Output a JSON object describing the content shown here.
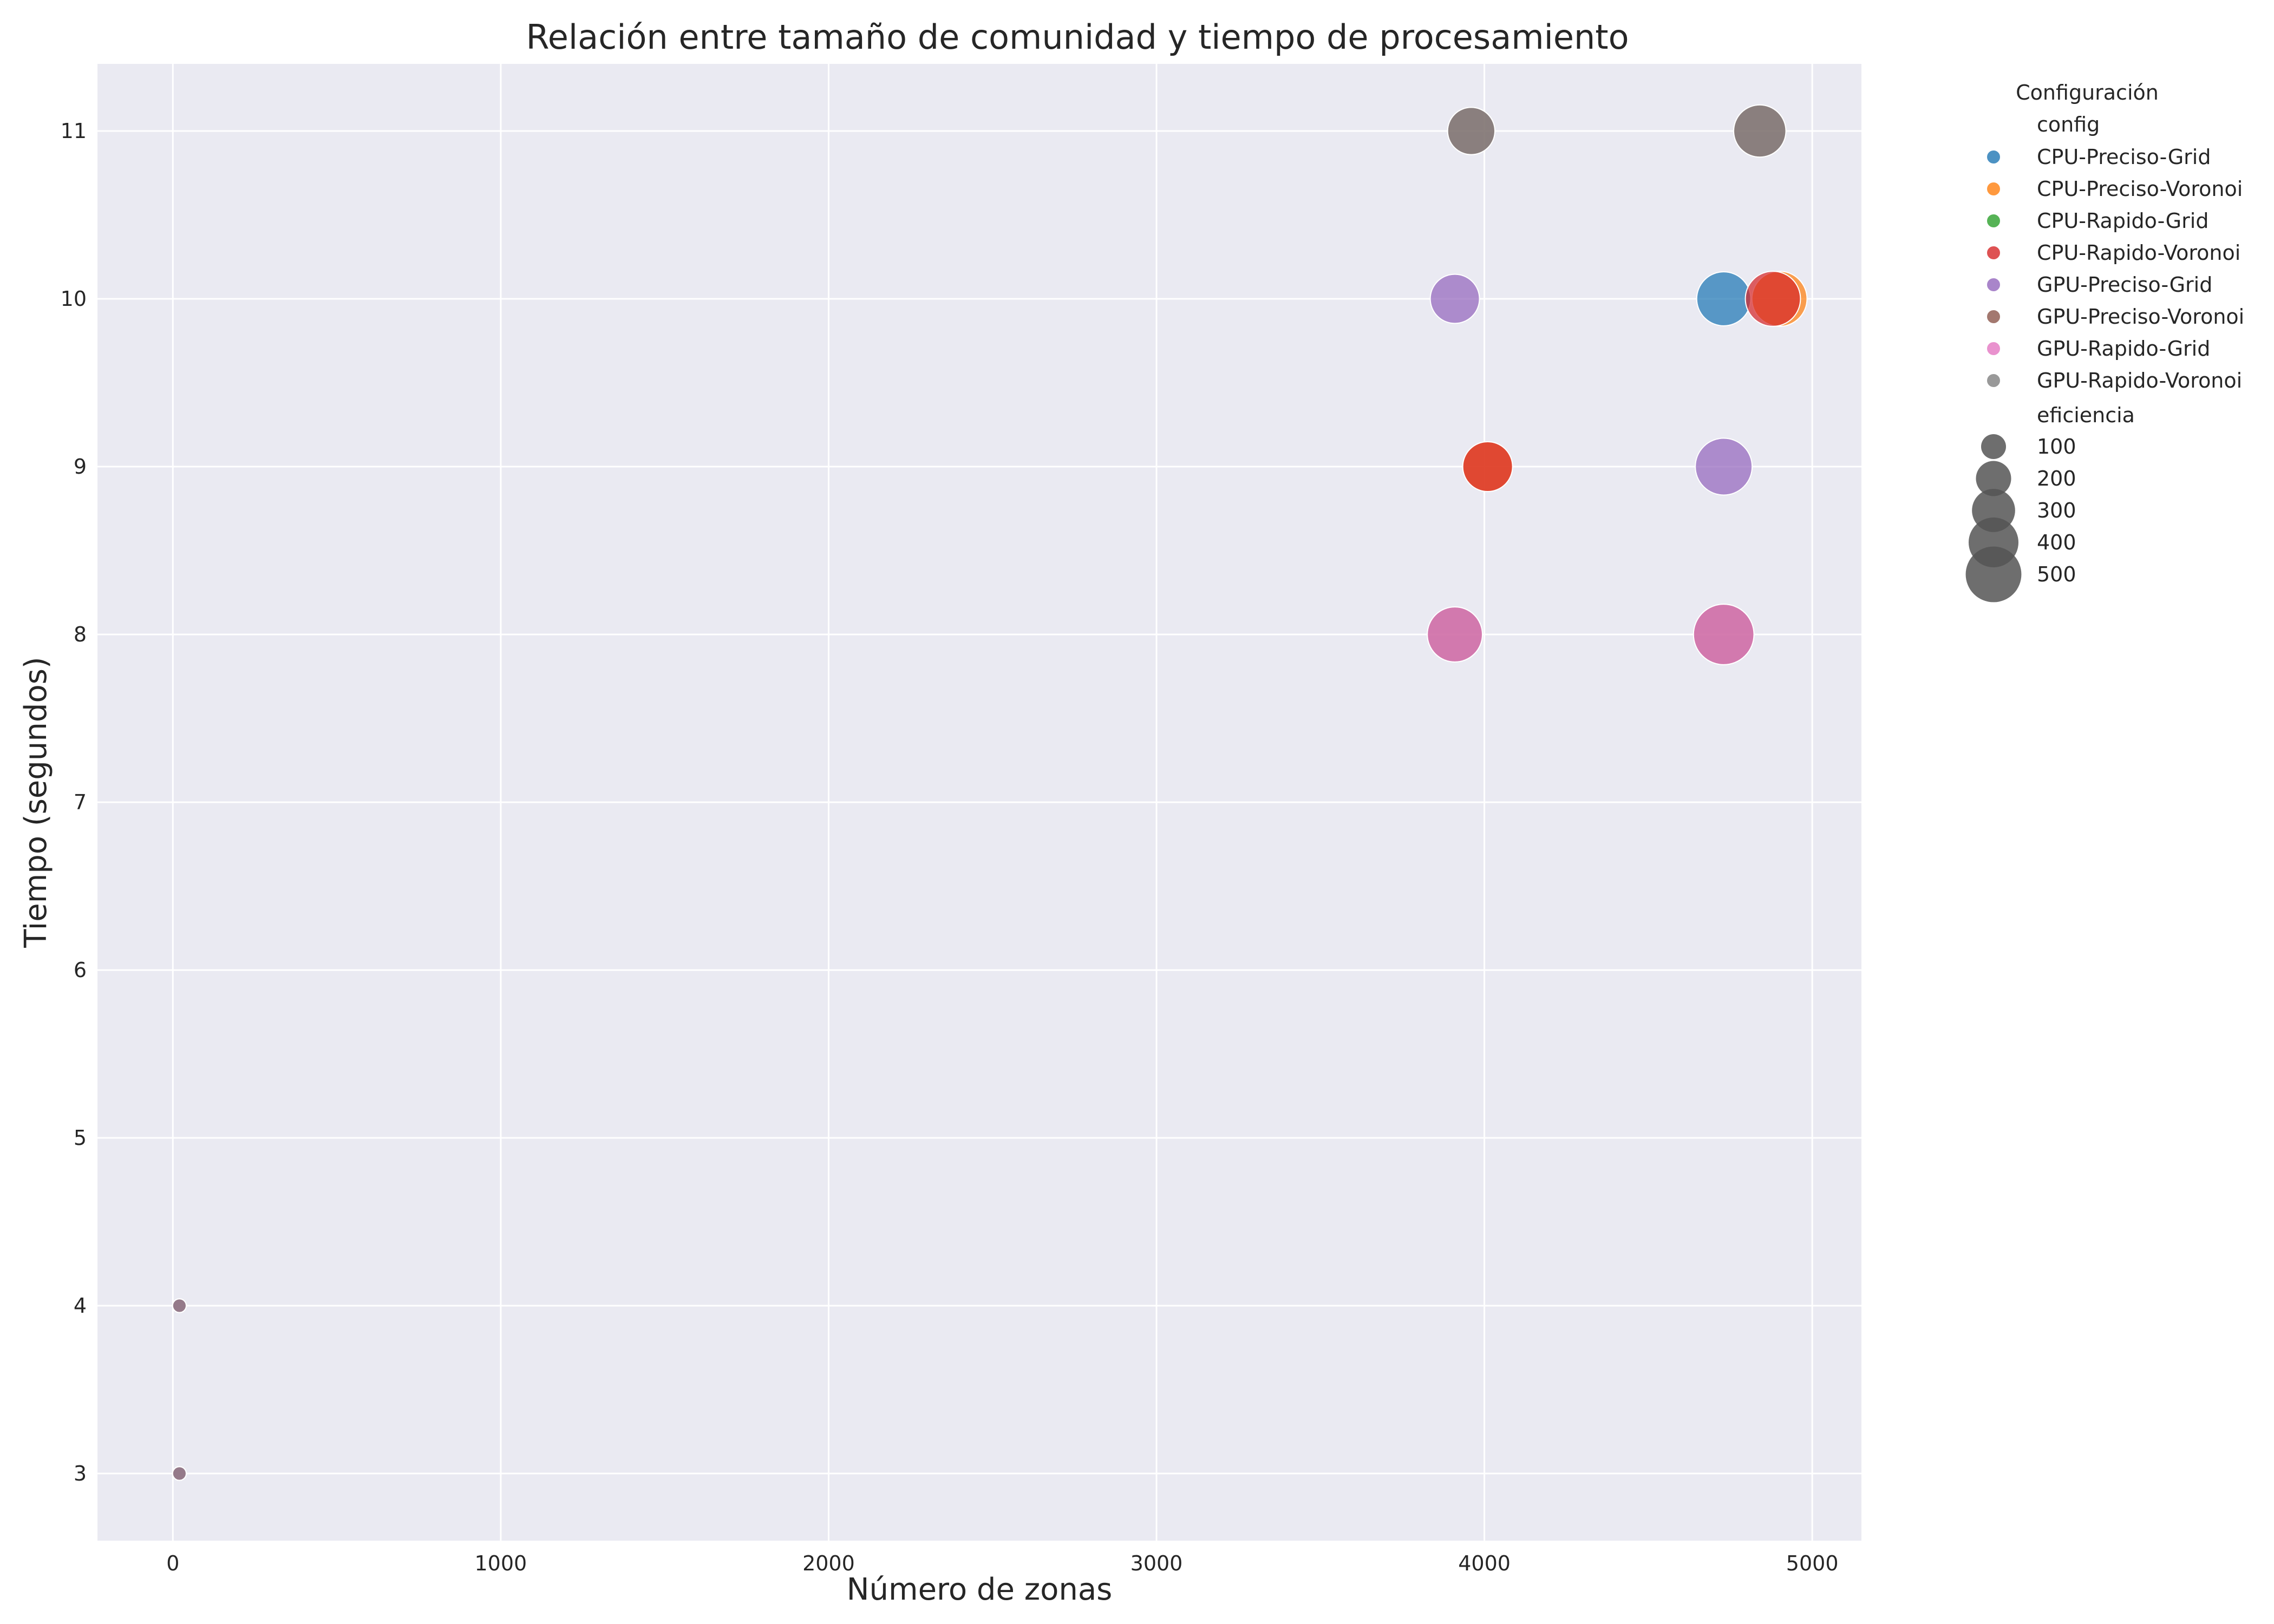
{
  "chart_data": {
    "type": "scatter",
    "title": "Relación entre tamaño de comunidad y tiempo de procesamiento",
    "xlabel": "Número de zonas",
    "ylabel": "Tiempo (segundos)",
    "xlim": [
      -230,
      5150
    ],
    "ylim": [
      2.6,
      11.4
    ],
    "x_ticks": [
      0,
      1000,
      2000,
      3000,
      4000,
      5000
    ],
    "y_ticks": [
      3,
      4,
      5,
      6,
      7,
      8,
      9,
      10,
      11
    ],
    "grid": true,
    "background": "#eaeaf2",
    "legend": {
      "title": "Configuración",
      "placement": "outside-right",
      "hue_title": "config",
      "size_title": "eficiencia",
      "size_entries": [
        100,
        200,
        300,
        400,
        500
      ]
    },
    "series": [
      {
        "name": "CPU-Preciso-Grid",
        "color": "#1f77b4",
        "points": [
          {
            "x": 20,
            "y": 3,
            "eficiencia": 30
          },
          {
            "x": 20,
            "y": 4,
            "eficiencia": 30
          },
          {
            "x": 4730,
            "y": 10,
            "eficiencia": 470
          }
        ]
      },
      {
        "name": "CPU-Preciso-Voronoi",
        "color": "#ff7f0e",
        "points": [
          {
            "x": 20,
            "y": 3,
            "eficiencia": 30
          },
          {
            "x": 20,
            "y": 4,
            "eficiencia": 30
          },
          {
            "x": 4010,
            "y": 9,
            "eficiencia": 400
          },
          {
            "x": 4900,
            "y": 10,
            "eficiencia": 490
          }
        ]
      },
      {
        "name": "CPU-Rapido-Grid",
        "color": "#2ca02c",
        "points": [
          {
            "x": 20,
            "y": 3,
            "eficiencia": 30
          },
          {
            "x": 20,
            "y": 4,
            "eficiencia": 30
          }
        ]
      },
      {
        "name": "CPU-Rapido-Voronoi",
        "color": "#d62728",
        "points": [
          {
            "x": 20,
            "y": 3,
            "eficiencia": 30
          },
          {
            "x": 20,
            "y": 4,
            "eficiencia": 30
          },
          {
            "x": 4010,
            "y": 9,
            "eficiencia": 400
          },
          {
            "x": 4880,
            "y": 10,
            "eficiencia": 490
          }
        ]
      },
      {
        "name": "GPU-Preciso-Grid",
        "color": "#9467bd",
        "points": [
          {
            "x": 20,
            "y": 3,
            "eficiencia": 30
          },
          {
            "x": 20,
            "y": 4,
            "eficiencia": 30
          },
          {
            "x": 3910,
            "y": 10,
            "eficiencia": 390
          },
          {
            "x": 4730,
            "y": 9,
            "eficiencia": 520
          }
        ]
      },
      {
        "name": "GPU-Preciso-Voronoi",
        "color": "#8c564b",
        "points": [
          {
            "x": 20,
            "y": 3,
            "eficiencia": 30
          },
          {
            "x": 20,
            "y": 4,
            "eficiencia": 30
          },
          {
            "x": 3910,
            "y": 8,
            "eficiencia": 490
          },
          {
            "x": 4730,
            "y": 8,
            "eficiencia": 590
          },
          {
            "x": 3960,
            "y": 11,
            "eficiencia": 360
          },
          {
            "x": 4840,
            "y": 11,
            "eficiencia": 440
          }
        ]
      },
      {
        "name": "GPU-Rapido-Grid",
        "color": "#e377c2",
        "points": [
          {
            "x": 20,
            "y": 3,
            "eficiencia": 30
          },
          {
            "x": 20,
            "y": 4,
            "eficiencia": 30
          },
          {
            "x": 3910,
            "y": 8,
            "eficiencia": 490
          },
          {
            "x": 4730,
            "y": 8,
            "eficiencia": 590
          }
        ]
      },
      {
        "name": "GPU-Rapido-Voronoi",
        "color": "#7f7f7f",
        "points": [
          {
            "x": 20,
            "y": 3,
            "eficiencia": 30
          },
          {
            "x": 20,
            "y": 4,
            "eficiencia": 30
          },
          {
            "x": 3960,
            "y": 11,
            "eficiencia": 360
          },
          {
            "x": 4840,
            "y": 11,
            "eficiencia": 440
          }
        ]
      }
    ]
  }
}
